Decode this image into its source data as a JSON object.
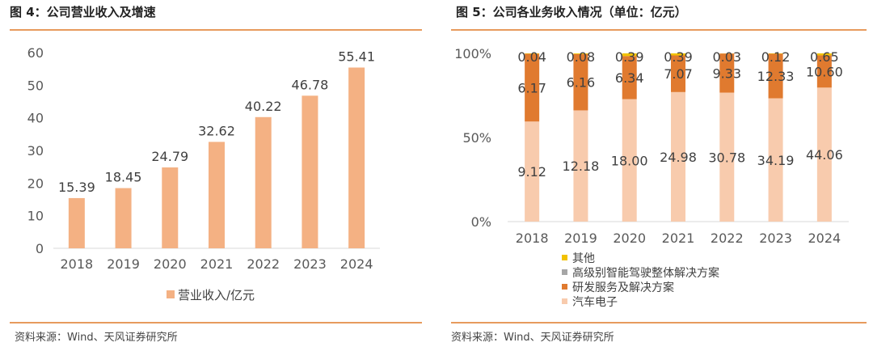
{
  "colors": {
    "accent": "#e79b5d",
    "bar": "#f4b183",
    "dark": "#e07a2f",
    "light": "#f8cbad",
    "other": "#f2c200",
    "grey": "#a6a6a6"
  },
  "left": {
    "title": "图 4：公司营业收入及增速",
    "source": "资料来源：Wind、天风证券研究所"
  },
  "right": {
    "title": "图 5：公司各业务收入情况（单位：亿元）",
    "source": "资料来源：Wind、天风证券研究所"
  },
  "chart_data": [
    {
      "type": "bar",
      "categories": [
        "2018",
        "2019",
        "2020",
        "2021",
        "2022",
        "2023",
        "2024"
      ],
      "series": [
        {
          "name": "营业收入/亿元",
          "values": [
            15.39,
            18.45,
            24.79,
            32.62,
            40.22,
            46.78,
            55.41
          ]
        }
      ],
      "ylim": [
        0,
        60
      ],
      "yticks": [
        0,
        10,
        20,
        30,
        40,
        50,
        60
      ],
      "legend": "bottom",
      "grid": false
    },
    {
      "type": "bar",
      "stacked_percent": true,
      "categories": [
        "2018",
        "2019",
        "2020",
        "2021",
        "2022",
        "2023",
        "2024"
      ],
      "series": [
        {
          "name": "汽车电子",
          "values": [
            9.12,
            12.18,
            18.0,
            24.98,
            30.78,
            34.19,
            44.06
          ]
        },
        {
          "name": "研发服务及解决方案",
          "values": [
            6.17,
            6.16,
            6.34,
            7.07,
            9.33,
            12.33,
            10.6
          ]
        },
        {
          "name": "高级别智能驾驶整体解决方案",
          "values": [
            null,
            null,
            null,
            null,
            null,
            null,
            null
          ]
        },
        {
          "name": "其他",
          "values": [
            0.04,
            0.08,
            0.39,
            0.39,
            0.03,
            0.12,
            0.65
          ]
        }
      ],
      "labels": {
        "bottom": [
          "9.12",
          "12.18",
          "18.00",
          "24.98",
          "30.78",
          "34.19",
          "44.06"
        ],
        "middle": [
          "6.17",
          "6.16",
          "6.34",
          "7.07",
          "9.33",
          "12.33",
          "10.60"
        ],
        "top": [
          "0.04",
          "0.08",
          "0.39",
          "0.39",
          "0.03",
          "0.12",
          "0.65"
        ]
      },
      "yticks": [
        "0%",
        "50%",
        "100%"
      ],
      "legend": "bottom-left",
      "legend_order": [
        "其他",
        "高级别智能驾驶整体解决方案",
        "研发服务及解决方案",
        "汽车电子"
      ],
      "grid": false
    }
  ]
}
